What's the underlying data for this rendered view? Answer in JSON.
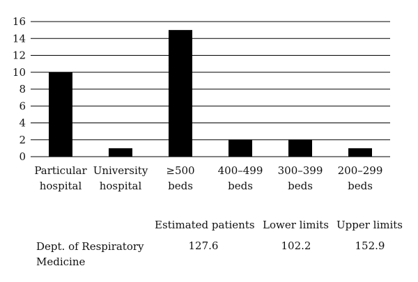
{
  "chart_data": {
    "type": "bar",
    "categories": [
      [
        "Particular",
        "hospital"
      ],
      [
        "University",
        "hospital"
      ],
      [
        "≥500",
        "beds"
      ],
      [
        "400–499",
        "beds"
      ],
      [
        "300–399",
        "beds"
      ],
      [
        "200–299",
        "beds"
      ]
    ],
    "values": [
      10,
      1,
      15,
      2,
      2,
      1
    ],
    "yticks": [
      0,
      2,
      4,
      6,
      8,
      10,
      12,
      14,
      16
    ],
    "ylim": [
      0,
      16
    ],
    "grid": true,
    "bar_color": "#000000",
    "grid_color": "#000000"
  },
  "table": {
    "headers": [
      "Estimated patients",
      "Lower limits",
      "Upper limits"
    ],
    "row_label": "Dept. of Respiratory Medicine",
    "values": [
      "127.6",
      "102.2",
      "152.9"
    ]
  }
}
